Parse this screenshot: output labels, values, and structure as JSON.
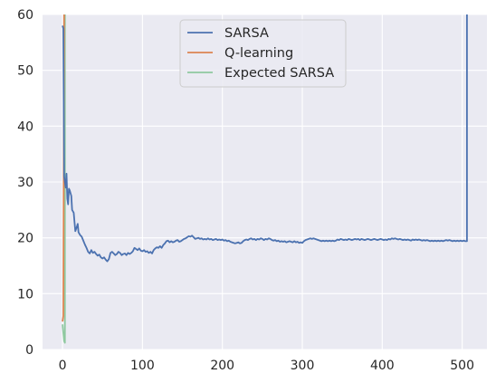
{
  "chart_data": {
    "type": "line",
    "title": "",
    "xlabel": "",
    "ylabel": "",
    "xlim": [
      -25,
      531
    ],
    "ylim": [
      0,
      60
    ],
    "x_ticks": [
      0,
      100,
      200,
      300,
      400,
      500
    ],
    "y_ticks": [
      0,
      10,
      20,
      30,
      40,
      50,
      60
    ],
    "grid": true,
    "legend_position": "top-center",
    "background": "#EAEAF2",
    "series": [
      {
        "name": "SARSA",
        "color": "#4C72B0",
        "points": [
          [
            0,
            58
          ],
          [
            1,
            57.5
          ],
          [
            2,
            31
          ],
          [
            3,
            30
          ],
          [
            4,
            29
          ],
          [
            5,
            31.5
          ],
          [
            6,
            27
          ],
          [
            7,
            26
          ],
          [
            8,
            28.8
          ],
          [
            9,
            28.5
          ],
          [
            10,
            28
          ],
          [
            11,
            27.5
          ],
          [
            12,
            25
          ],
          [
            14,
            24.5
          ],
          [
            16,
            21.2
          ],
          [
            18,
            22
          ],
          [
            19,
            22.5
          ],
          [
            20,
            21
          ],
          [
            22,
            20.5
          ],
          [
            24,
            20.2
          ],
          [
            26,
            19.5
          ],
          [
            28,
            18.8
          ],
          [
            30,
            18.2
          ],
          [
            32,
            17.5
          ],
          [
            34,
            17.2
          ],
          [
            36,
            17.8
          ],
          [
            38,
            17.3
          ],
          [
            40,
            17.5
          ],
          [
            42,
            17.1
          ],
          [
            44,
            16.8
          ],
          [
            46,
            17
          ],
          [
            48,
            16.5
          ],
          [
            50,
            16.3
          ],
          [
            52,
            16.5
          ],
          [
            54,
            16.1
          ],
          [
            56,
            15.8
          ],
          [
            58,
            16.2
          ],
          [
            60,
            17.3
          ],
          [
            62,
            17.5
          ],
          [
            64,
            17.2
          ],
          [
            66,
            16.9
          ],
          [
            68,
            17.1
          ],
          [
            70,
            17.5
          ],
          [
            72,
            17.3
          ],
          [
            74,
            16.9
          ],
          [
            76,
            17.1
          ],
          [
            78,
            17.2
          ],
          [
            80,
            16.9
          ],
          [
            82,
            17.3
          ],
          [
            84,
            17.1
          ],
          [
            86,
            17.3
          ],
          [
            88,
            17.6
          ],
          [
            90,
            18.2
          ],
          [
            92,
            18
          ],
          [
            94,
            17.8
          ],
          [
            96,
            18.1
          ],
          [
            98,
            17.7
          ],
          [
            100,
            17.6
          ],
          [
            102,
            17.8
          ],
          [
            104,
            17.5
          ],
          [
            106,
            17.6
          ],
          [
            108,
            17.3
          ],
          [
            110,
            17.5
          ],
          [
            112,
            17.2
          ],
          [
            114,
            17.8
          ],
          [
            116,
            18.1
          ],
          [
            118,
            18.3
          ],
          [
            120,
            18.2
          ],
          [
            122,
            18.5
          ],
          [
            124,
            18.2
          ],
          [
            126,
            18.7
          ],
          [
            128,
            19
          ],
          [
            130,
            19.4
          ],
          [
            132,
            19.5
          ],
          [
            134,
            19.2
          ],
          [
            136,
            19.4
          ],
          [
            138,
            19.2
          ],
          [
            140,
            19.3
          ],
          [
            142,
            19.5
          ],
          [
            144,
            19.6
          ],
          [
            146,
            19.3
          ],
          [
            148,
            19.4
          ],
          [
            150,
            19.6
          ],
          [
            152,
            19.8
          ],
          [
            154,
            19.9
          ],
          [
            156,
            20.1
          ],
          [
            158,
            20.3
          ],
          [
            160,
            20.2
          ],
          [
            162,
            20.4
          ],
          [
            164,
            20.1
          ],
          [
            166,
            19.8
          ],
          [
            168,
            19.9
          ],
          [
            170,
            20
          ],
          [
            172,
            19.8
          ],
          [
            174,
            19.9
          ],
          [
            176,
            19.7
          ],
          [
            178,
            19.8
          ],
          [
            180,
            19.7
          ],
          [
            182,
            19.9
          ],
          [
            184,
            19.7
          ],
          [
            186,
            19.8
          ],
          [
            188,
            19.6
          ],
          [
            190,
            19.7
          ],
          [
            192,
            19.8
          ],
          [
            194,
            19.6
          ],
          [
            196,
            19.7
          ],
          [
            198,
            19.6
          ],
          [
            200,
            19.7
          ],
          [
            202,
            19.5
          ],
          [
            204,
            19.6
          ],
          [
            206,
            19.4
          ],
          [
            208,
            19.5
          ],
          [
            210,
            19.3
          ],
          [
            212,
            19.2
          ],
          [
            214,
            19.1
          ],
          [
            216,
            19
          ],
          [
            218,
            19.1
          ],
          [
            220,
            19.2
          ],
          [
            222,
            19
          ],
          [
            224,
            19.1
          ],
          [
            226,
            19.4
          ],
          [
            228,
            19.6
          ],
          [
            230,
            19.7
          ],
          [
            232,
            19.6
          ],
          [
            234,
            19.8
          ],
          [
            236,
            19.9
          ],
          [
            238,
            19.7
          ],
          [
            240,
            19.8
          ],
          [
            242,
            19.6
          ],
          [
            244,
            19.8
          ],
          [
            246,
            19.7
          ],
          [
            248,
            19.9
          ],
          [
            250,
            19.8
          ],
          [
            252,
            19.6
          ],
          [
            254,
            19.8
          ],
          [
            256,
            19.7
          ],
          [
            258,
            19.9
          ],
          [
            260,
            19.8
          ],
          [
            262,
            19.6
          ],
          [
            264,
            19.5
          ],
          [
            266,
            19.6
          ],
          [
            268,
            19.4
          ],
          [
            270,
            19.5
          ],
          [
            272,
            19.3
          ],
          [
            274,
            19.4
          ],
          [
            276,
            19.3
          ],
          [
            278,
            19.4
          ],
          [
            280,
            19.2
          ],
          [
            282,
            19.3
          ],
          [
            284,
            19.4
          ],
          [
            286,
            19.3
          ],
          [
            288,
            19.2
          ],
          [
            290,
            19.4
          ],
          [
            292,
            19.2
          ],
          [
            294,
            19.3
          ],
          [
            296,
            19.1
          ],
          [
            298,
            19.2
          ],
          [
            300,
            19.1
          ],
          [
            302,
            19.4
          ],
          [
            304,
            19.6
          ],
          [
            306,
            19.7
          ],
          [
            308,
            19.8
          ],
          [
            310,
            19.9
          ],
          [
            312,
            19.8
          ],
          [
            314,
            19.9
          ],
          [
            316,
            19.8
          ],
          [
            318,
            19.7
          ],
          [
            320,
            19.6
          ],
          [
            322,
            19.5
          ],
          [
            324,
            19.4
          ],
          [
            326,
            19.5
          ],
          [
            328,
            19.4
          ],
          [
            330,
            19.5
          ],
          [
            332,
            19.4
          ],
          [
            334,
            19.5
          ],
          [
            336,
            19.4
          ],
          [
            338,
            19.5
          ],
          [
            340,
            19.4
          ],
          [
            342,
            19.5
          ],
          [
            344,
            19.7
          ],
          [
            346,
            19.6
          ],
          [
            348,
            19.8
          ],
          [
            350,
            19.7
          ],
          [
            352,
            19.6
          ],
          [
            354,
            19.7
          ],
          [
            356,
            19.6
          ],
          [
            358,
            19.8
          ],
          [
            360,
            19.7
          ],
          [
            362,
            19.6
          ],
          [
            364,
            19.7
          ],
          [
            366,
            19.8
          ],
          [
            368,
            19.7
          ],
          [
            370,
            19.8
          ],
          [
            372,
            19.6
          ],
          [
            374,
            19.8
          ],
          [
            376,
            19.7
          ],
          [
            378,
            19.6
          ],
          [
            380,
            19.7
          ],
          [
            382,
            19.8
          ],
          [
            384,
            19.7
          ],
          [
            386,
            19.6
          ],
          [
            388,
            19.7
          ],
          [
            390,
            19.8
          ],
          [
            392,
            19.7
          ],
          [
            394,
            19.6
          ],
          [
            396,
            19.7
          ],
          [
            398,
            19.8
          ],
          [
            400,
            19.7
          ],
          [
            402,
            19.6
          ],
          [
            404,
            19.7
          ],
          [
            406,
            19.6
          ],
          [
            408,
            19.8
          ],
          [
            410,
            19.7
          ],
          [
            412,
            19.9
          ],
          [
            414,
            19.8
          ],
          [
            416,
            19.9
          ],
          [
            418,
            19.8
          ],
          [
            420,
            19.7
          ],
          [
            422,
            19.8
          ],
          [
            424,
            19.7
          ],
          [
            426,
            19.6
          ],
          [
            428,
            19.7
          ],
          [
            430,
            19.6
          ],
          [
            432,
            19.7
          ],
          [
            434,
            19.6
          ],
          [
            436,
            19.5
          ],
          [
            438,
            19.7
          ],
          [
            440,
            19.6
          ],
          [
            442,
            19.7
          ],
          [
            444,
            19.6
          ],
          [
            446,
            19.7
          ],
          [
            448,
            19.6
          ],
          [
            450,
            19.5
          ],
          [
            452,
            19.6
          ],
          [
            454,
            19.5
          ],
          [
            456,
            19.6
          ],
          [
            458,
            19.5
          ],
          [
            460,
            19.4
          ],
          [
            462,
            19.5
          ],
          [
            464,
            19.4
          ],
          [
            466,
            19.5
          ],
          [
            468,
            19.4
          ],
          [
            470,
            19.5
          ],
          [
            472,
            19.4
          ],
          [
            474,
            19.5
          ],
          [
            476,
            19.4
          ],
          [
            478,
            19.5
          ],
          [
            480,
            19.6
          ],
          [
            482,
            19.5
          ],
          [
            484,
            19.6
          ],
          [
            486,
            19.5
          ],
          [
            488,
            19.4
          ],
          [
            490,
            19.5
          ],
          [
            492,
            19.4
          ],
          [
            494,
            19.5
          ],
          [
            496,
            19.4
          ],
          [
            498,
            19.5
          ],
          [
            500,
            19.4
          ],
          [
            502,
            19.5
          ],
          [
            504,
            19.4
          ],
          [
            506,
            19.4
          ],
          [
            506,
            62
          ]
        ]
      },
      {
        "name": "Q-learning",
        "color": "#DD8452",
        "points": [
          [
            0,
            5
          ],
          [
            1,
            6
          ],
          [
            2,
            62
          ],
          [
            3,
            62
          ]
        ]
      },
      {
        "name": "Expected SARSA",
        "color": "#8FC9A0",
        "points": [
          [
            0,
            4.5
          ],
          [
            1,
            3
          ],
          [
            2,
            1.5
          ],
          [
            3,
            1.2
          ],
          [
            3,
            58
          ],
          [
            3,
            62
          ]
        ]
      }
    ]
  }
}
